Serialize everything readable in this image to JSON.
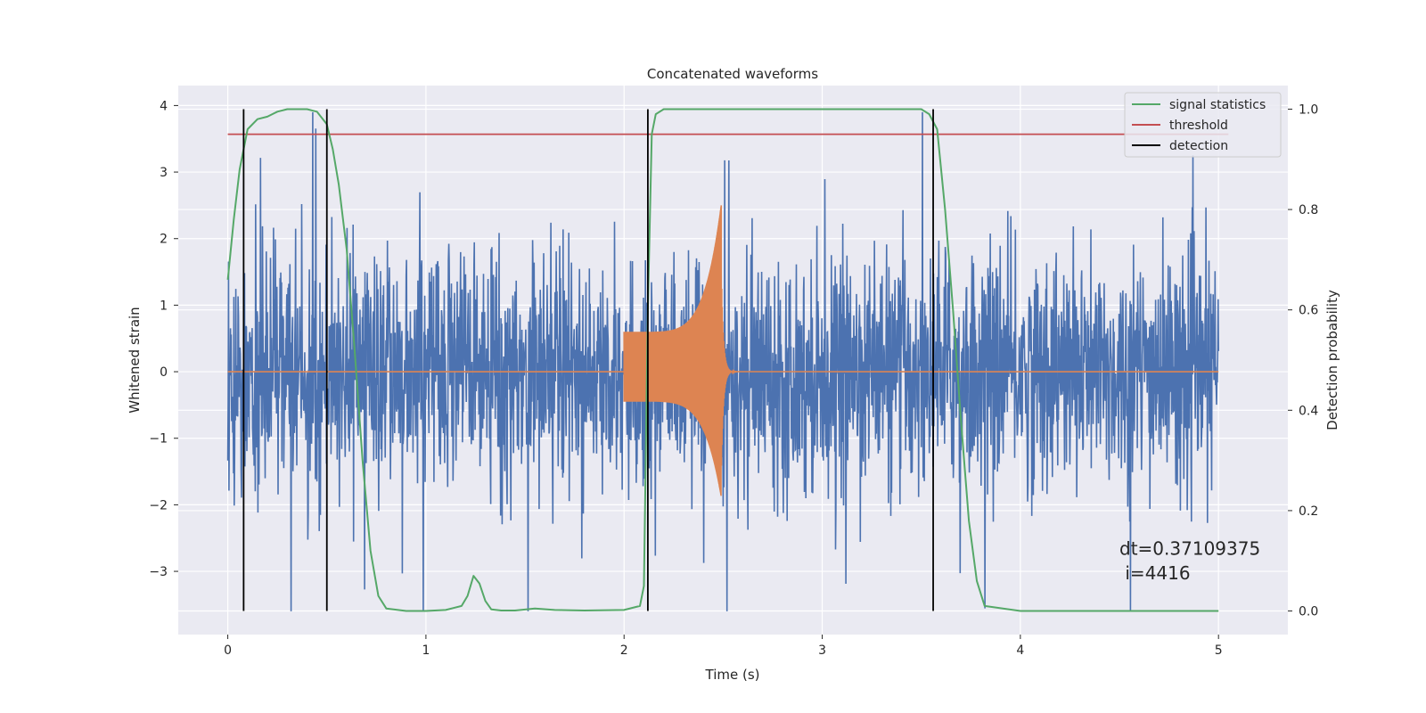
{
  "chart_data": {
    "type": "line",
    "title": "Concatenated waveforms",
    "xlabel": "Time (s)",
    "ylabel": "Whitened strain",
    "y2label": "Detection probability",
    "xlim": [
      -0.25,
      5.35
    ],
    "ylim": [
      -3.95,
      4.3
    ],
    "y2lim": [
      -0.047,
      1.047
    ],
    "xticks": [
      0,
      1,
      2,
      3,
      4,
      5
    ],
    "yticks": [
      -3,
      -2,
      -1,
      0,
      1,
      2,
      3,
      4
    ],
    "y2ticks": [
      0.0,
      0.2,
      0.4,
      0.6,
      0.8,
      1.0
    ],
    "ytick_labels": [
      "−3",
      "−2",
      "−1",
      "0",
      "1",
      "2",
      "3",
      "4"
    ],
    "y2tick_labels": [
      "0.0",
      "0.2",
      "0.4",
      "0.6",
      "0.8",
      "1.0"
    ],
    "grid": true,
    "legend_position": "top-right",
    "legend": [
      {
        "label": "signal statistics",
        "color": "#55a868",
        "width": 2
      },
      {
        "label": "threshold",
        "color": "#c44e52",
        "width": 2
      },
      {
        "label": "detection",
        "color": "#000000",
        "width": 2
      }
    ],
    "annotation": {
      "line1": "dt=0.37109375",
      "line2": " i=4416",
      "x": 4.5,
      "y1": -2.75,
      "y2": -3.12
    },
    "colors": {
      "noise": "#4c72b0",
      "signal": "#dd8452",
      "statistic": "#55a868",
      "threshold": "#c44e52",
      "detection": "#000000",
      "plot_bg": "#eaeaf2",
      "grid": "#ffffff"
    },
    "noise": {
      "x_range": [
        0,
        5
      ],
      "typical_amplitude": 1.0,
      "extremes": [
        -3.6,
        3.9
      ]
    },
    "signal": {
      "x_range": [
        2.0,
        2.5
      ],
      "peak_x": 2.49,
      "peak_value": 2.6,
      "min_value": -1.9,
      "ringdown_end": 3.0
    },
    "threshold": {
      "value": 0.95,
      "x_range": [
        0,
        5.05
      ]
    },
    "detections": [
      0.08,
      0.5,
      2.12,
      3.56
    ],
    "statistic": {
      "x": [
        0.0,
        0.03,
        0.06,
        0.1,
        0.15,
        0.2,
        0.25,
        0.3,
        0.35,
        0.4,
        0.45,
        0.5,
        0.53,
        0.56,
        0.6,
        0.64,
        0.68,
        0.72,
        0.76,
        0.8,
        0.9,
        1.0,
        1.1,
        1.18,
        1.21,
        1.24,
        1.27,
        1.3,
        1.33,
        1.38,
        1.45,
        1.55,
        1.65,
        1.8,
        2.0,
        2.08,
        2.1,
        2.12,
        2.14,
        2.16,
        2.2,
        2.5,
        3.0,
        3.5,
        3.54,
        3.58,
        3.62,
        3.66,
        3.7,
        3.74,
        3.78,
        3.82,
        4.0,
        4.5,
        5.0
      ],
      "values": [
        0.66,
        0.78,
        0.88,
        0.96,
        0.98,
        0.985,
        0.995,
        1.0,
        1.0,
        1.0,
        0.995,
        0.97,
        0.92,
        0.85,
        0.72,
        0.52,
        0.3,
        0.12,
        0.03,
        0.005,
        0.0,
        0.0,
        0.002,
        0.01,
        0.03,
        0.07,
        0.055,
        0.02,
        0.003,
        0.001,
        0.001,
        0.005,
        0.002,
        0.001,
        0.002,
        0.01,
        0.05,
        0.6,
        0.95,
        0.99,
        1.0,
        1.0,
        1.0,
        1.0,
        0.99,
        0.96,
        0.8,
        0.6,
        0.38,
        0.18,
        0.06,
        0.01,
        0.0,
        0.0,
        0.0
      ]
    }
  }
}
